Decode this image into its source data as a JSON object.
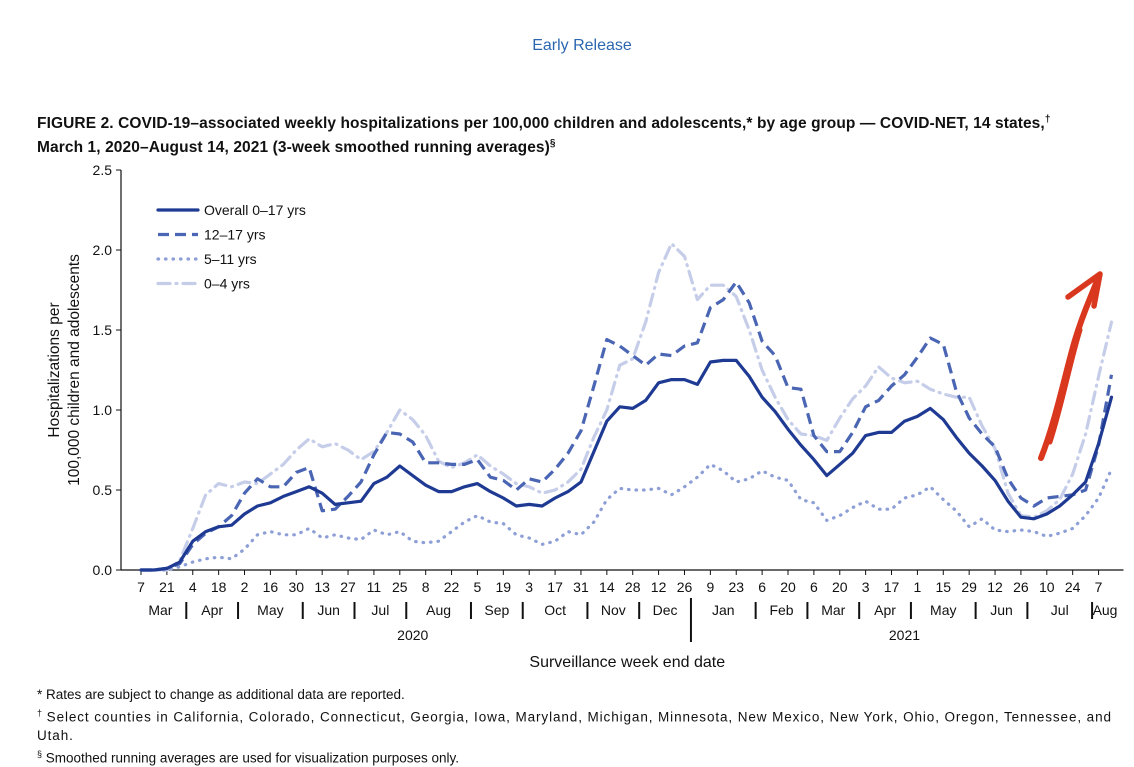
{
  "header": "Early Release",
  "figure": {
    "title_line1": "FIGURE 2. COVID-19–associated weekly hospitalizations per 100,000 children and adolescents,* by age group — COVID-NET, 14 states,",
    "title_mark1": "†",
    "title_line2": "March 1, 2020–August 14, 2021 (3-week smoothed running averages)",
    "title_mark2": "§"
  },
  "chart_data": {
    "type": "line",
    "ylabel_line1": "Hospitalizations per",
    "ylabel_line2": "100,000 children and adolescents",
    "xlabel": "Surveillance week end date",
    "ylim": [
      0,
      2.5
    ],
    "yticks": [
      "0.0",
      "0.5",
      "1.0",
      "1.5",
      "2.0",
      "2.5"
    ],
    "legend_position": "top-left",
    "grid": false,
    "x": [
      "7",
      "14",
      "21",
      "28",
      "4",
      "11",
      "18",
      "25",
      "2",
      "9",
      "16",
      "23",
      "30",
      "6",
      "13",
      "20",
      "27",
      "4",
      "11",
      "18",
      "25",
      "1",
      "8",
      "15",
      "22",
      "29",
      "5",
      "12",
      "19",
      "26",
      "3",
      "10",
      "17",
      "24",
      "31",
      "7",
      "14",
      "21",
      "28",
      "5",
      "12",
      "19",
      "26",
      "2",
      "9",
      "16",
      "23",
      "30",
      "6",
      "13",
      "20",
      "27",
      "6",
      "13",
      "20",
      "27",
      "3",
      "10",
      "17",
      "24",
      "1",
      "8",
      "15",
      "22",
      "29",
      "5",
      "12",
      "19",
      "26",
      "3",
      "10",
      "17",
      "24",
      "31",
      "7",
      "14"
    ],
    "tick_labels": [
      "7",
      "21",
      "4",
      "18",
      "2",
      "16",
      "30",
      "13",
      "27",
      "11",
      "25",
      "8",
      "22",
      "5",
      "19",
      "3",
      "17",
      "31",
      "14",
      "28",
      "12",
      "26",
      "9",
      "23",
      "6",
      "20",
      "6",
      "20",
      "3",
      "17",
      "1",
      "15",
      "29",
      "12",
      "26",
      "10",
      "24",
      "7",
      "14"
    ],
    "months": [
      {
        "label": "Mar",
        "start": 0,
        "end": 3
      },
      {
        "label": "Apr",
        "start": 4,
        "end": 7
      },
      {
        "label": "May",
        "start": 8,
        "end": 12
      },
      {
        "label": "Jun",
        "start": 13,
        "end": 16
      },
      {
        "label": "Jul",
        "start": 17,
        "end": 20
      },
      {
        "label": "Aug",
        "start": 21,
        "end": 25
      },
      {
        "label": "Sep",
        "start": 26,
        "end": 29
      },
      {
        "label": "Oct",
        "start": 30,
        "end": 34
      },
      {
        "label": "Nov",
        "start": 35,
        "end": 38
      },
      {
        "label": "Dec",
        "start": 39,
        "end": 42
      },
      {
        "label": "Jan",
        "start": 43,
        "end": 47
      },
      {
        "label": "Feb",
        "start": 48,
        "end": 51
      },
      {
        "label": "Mar",
        "start": 52,
        "end": 55
      },
      {
        "label": "Apr",
        "start": 56,
        "end": 59
      },
      {
        "label": "May",
        "start": 60,
        "end": 64
      },
      {
        "label": "Jun",
        "start": 65,
        "end": 68
      },
      {
        "label": "Jul",
        "start": 69,
        "end": 73
      },
      {
        "label": "Aug",
        "start": 74,
        "end": 75
      }
    ],
    "years": [
      {
        "label": "2020",
        "start": 0,
        "end": 42
      },
      {
        "label": "2021",
        "start": 43,
        "end": 75
      }
    ],
    "series": [
      {
        "name": "Overall 0–17 yrs",
        "color": "#1f3a93",
        "style": "solid",
        "values": [
          0.0,
          0.0,
          0.01,
          0.05,
          0.18,
          0.24,
          0.27,
          0.28,
          0.35,
          0.4,
          0.42,
          0.46,
          0.49,
          0.52,
          0.48,
          0.41,
          0.42,
          0.43,
          0.54,
          0.58,
          0.65,
          0.59,
          0.53,
          0.49,
          0.49,
          0.52,
          0.54,
          0.49,
          0.45,
          0.4,
          0.41,
          0.4,
          0.45,
          0.49,
          0.55,
          0.74,
          0.93,
          1.02,
          1.01,
          1.06,
          1.17,
          1.19,
          1.19,
          1.16,
          1.3,
          1.31,
          1.31,
          1.21,
          1.08,
          0.99,
          0.88,
          0.78,
          0.69,
          0.59,
          0.66,
          0.73,
          0.84,
          0.86,
          0.86,
          0.93,
          0.96,
          1.01,
          0.94,
          0.83,
          0.73,
          0.65,
          0.56,
          0.43,
          0.33,
          0.32,
          0.35,
          0.4,
          0.47,
          0.55,
          0.79,
          1.08
        ]
      },
      {
        "name": "12–17 yrs",
        "color": "#4a65b3",
        "style": "dash",
        "values": [
          0.0,
          0.0,
          0.01,
          0.04,
          0.16,
          0.23,
          0.27,
          0.34,
          0.48,
          0.57,
          0.52,
          0.52,
          0.61,
          0.64,
          0.37,
          0.38,
          0.46,
          0.55,
          0.72,
          0.86,
          0.85,
          0.8,
          0.67,
          0.67,
          0.66,
          0.66,
          0.69,
          0.58,
          0.56,
          0.5,
          0.57,
          0.55,
          0.63,
          0.73,
          0.87,
          1.15,
          1.44,
          1.4,
          1.34,
          1.28,
          1.35,
          1.34,
          1.4,
          1.42,
          1.64,
          1.69,
          1.8,
          1.67,
          1.43,
          1.34,
          1.14,
          1.13,
          0.84,
          0.74,
          0.74,
          0.86,
          1.02,
          1.06,
          1.15,
          1.22,
          1.33,
          1.45,
          1.41,
          1.12,
          0.95,
          0.85,
          0.77,
          0.57,
          0.45,
          0.4,
          0.45,
          0.46,
          0.47,
          0.5,
          0.78,
          1.22
        ]
      },
      {
        "name": "5–11 yrs",
        "color": "#8d9fd6",
        "style": "dot",
        "values": [
          0.0,
          0.0,
          0.0,
          0.02,
          0.05,
          0.07,
          0.08,
          0.07,
          0.13,
          0.22,
          0.24,
          0.22,
          0.22,
          0.26,
          0.2,
          0.22,
          0.2,
          0.19,
          0.25,
          0.22,
          0.24,
          0.18,
          0.17,
          0.18,
          0.24,
          0.3,
          0.34,
          0.3,
          0.29,
          0.22,
          0.2,
          0.16,
          0.18,
          0.24,
          0.22,
          0.3,
          0.44,
          0.51,
          0.5,
          0.5,
          0.51,
          0.47,
          0.52,
          0.58,
          0.66,
          0.62,
          0.55,
          0.57,
          0.62,
          0.58,
          0.56,
          0.44,
          0.42,
          0.31,
          0.34,
          0.39,
          0.43,
          0.38,
          0.38,
          0.45,
          0.47,
          0.52,
          0.44,
          0.37,
          0.27,
          0.32,
          0.25,
          0.24,
          0.25,
          0.24,
          0.21,
          0.23,
          0.26,
          0.34,
          0.45,
          0.63
        ]
      },
      {
        "name": "0–4 yrs",
        "color": "#c5cde9",
        "style": "dashdot",
        "values": [
          0.0,
          0.0,
          0.0,
          0.06,
          0.26,
          0.47,
          0.54,
          0.52,
          0.55,
          0.54,
          0.6,
          0.66,
          0.75,
          0.82,
          0.77,
          0.79,
          0.75,
          0.69,
          0.74,
          0.86,
          1.0,
          0.94,
          0.84,
          0.68,
          0.64,
          0.67,
          0.72,
          0.65,
          0.6,
          0.54,
          0.52,
          0.48,
          0.5,
          0.55,
          0.63,
          0.83,
          1.0,
          1.28,
          1.32,
          1.55,
          1.86,
          2.04,
          1.96,
          1.69,
          1.78,
          1.78,
          1.71,
          1.5,
          1.25,
          1.08,
          0.94,
          0.85,
          0.84,
          0.81,
          0.95,
          1.07,
          1.15,
          1.27,
          1.2,
          1.17,
          1.18,
          1.13,
          1.1,
          1.08,
          1.08,
          0.9,
          0.76,
          0.48,
          0.34,
          0.33,
          0.37,
          0.44,
          0.6,
          0.85,
          1.21,
          1.55
        ]
      }
    ]
  },
  "annotation": {
    "name": "red-arrow",
    "color": "#d9381e"
  },
  "footnotes": {
    "f1": "* Rates are subject to change as additional data are reported.",
    "f2_mark": "†",
    "f2": " Select counties in California, Colorado, Connecticut, Georgia, Iowa, Maryland, Michigan, Minnesota, New Mexico, New York, Ohio, Oregon, Tennessee, and Utah.",
    "f3_mark": "§",
    "f3": " Smoothed running averages are used for visualization purposes only."
  }
}
